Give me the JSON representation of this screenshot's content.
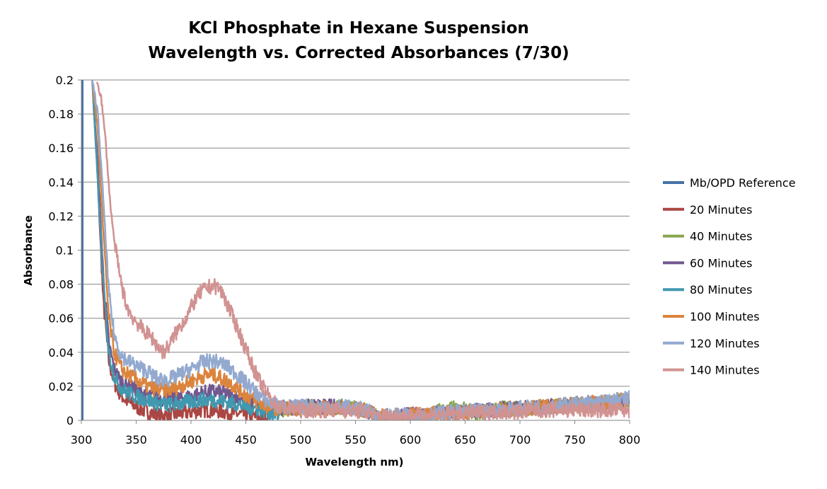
{
  "chart_data": {
    "type": "line",
    "title": [
      "KCl Phosphate in Hexane Suspension",
      "Wavelength vs. Corrected Absorbances (7/30)"
    ],
    "xlabel": "Wavelength nm)",
    "ylabel": "Absorbance",
    "xlim": [
      300,
      800
    ],
    "ylim": [
      0,
      0.2
    ],
    "xticks": [
      "300",
      "350",
      "400",
      "450",
      "500",
      "550",
      "600",
      "650",
      "700",
      "750",
      "800"
    ],
    "yticks": [
      "0",
      "0.02",
      "0.04",
      "0.06",
      "0.08",
      "0.1",
      "0.12",
      "0.14",
      "0.16",
      "0.18",
      "0.2"
    ],
    "grid": "horizontal",
    "legend_position": "right",
    "series": [
      {
        "name": "Mb/OPD Reference",
        "color": "#4572A7",
        "x": [
          300,
          300,
          301,
          301
        ],
        "y": [
          0.2,
          0,
          0,
          0.2
        ]
      },
      {
        "name": "20 Minutes",
        "color": "#AA4643",
        "x": [
          310,
          315,
          320,
          325,
          330,
          335,
          340,
          350,
          360,
          370,
          380,
          390,
          400,
          410,
          420,
          430,
          440,
          450,
          460,
          470
        ],
        "y": [
          0.2,
          0.14,
          0.07,
          0.035,
          0.022,
          0.016,
          0.012,
          0.008,
          0.005,
          0.003,
          0.003,
          0.004,
          0.005,
          0.006,
          0.006,
          0.005,
          0.004,
          0.003,
          0.002,
          0.001
        ]
      },
      {
        "name": "40 Minutes",
        "color": "#89A54E",
        "x": [
          480,
          490,
          500,
          510,
          520,
          530,
          540,
          550,
          560,
          570,
          580,
          590,
          600,
          610,
          620,
          630,
          640,
          650,
          660,
          670,
          680,
          690,
          700,
          710,
          720,
          730,
          740,
          750,
          760,
          770,
          780,
          790,
          800
        ],
        "y": [
          0.006,
          0.007,
          0.008,
          0.008,
          0.008,
          0.008,
          0.008,
          0.007,
          0.006,
          0.002,
          0,
          0,
          0,
          0.002,
          0.004,
          0.006,
          0.007,
          0.006,
          0.004,
          0.006,
          0.007,
          0.007,
          0.007,
          0.007,
          0.008,
          0.008,
          0.009,
          0.01,
          0.009,
          0.009,
          0.01,
          0.011,
          0.012
        ]
      },
      {
        "name": "60 Minutes",
        "color": "#71588F",
        "x": [
          310,
          315,
          320,
          325,
          330,
          335,
          340,
          350,
          360,
          370,
          380,
          390,
          400,
          410,
          420,
          430,
          440,
          450,
          460,
          470,
          480,
          500,
          520,
          540,
          560,
          570,
          650,
          670,
          700,
          720,
          740,
          760,
          780,
          800
        ],
        "y": [
          0.2,
          0.15,
          0.085,
          0.045,
          0.03,
          0.024,
          0.021,
          0.018,
          0.015,
          0.013,
          0.012,
          0.013,
          0.014,
          0.016,
          0.017,
          0.016,
          0.014,
          0.012,
          0.01,
          0.008,
          0.007,
          0.008,
          0.008,
          0.008,
          0.006,
          0.002,
          0.005,
          0.006,
          0.007,
          0.008,
          0.009,
          0.01,
          0.01,
          0.011
        ]
      },
      {
        "name": "80 Minutes",
        "color": "#4198AF",
        "x": [
          310,
          315,
          320,
          325,
          330,
          335,
          340,
          350,
          360,
          370,
          380,
          390,
          400,
          410,
          420,
          430,
          440,
          450,
          460,
          470,
          480
        ],
        "y": [
          0.2,
          0.14,
          0.08,
          0.04,
          0.026,
          0.02,
          0.017,
          0.014,
          0.012,
          0.01,
          0.009,
          0.01,
          0.011,
          0.012,
          0.012,
          0.011,
          0.01,
          0.008,
          0.007,
          0.005,
          0.003
        ]
      },
      {
        "name": "100 Minutes",
        "color": "#DB843D",
        "x": [
          310,
          315,
          320,
          325,
          330,
          335,
          340,
          350,
          360,
          370,
          380,
          390,
          400,
          410,
          420,
          430,
          440,
          450,
          460,
          470,
          480,
          500,
          520,
          540,
          560,
          570,
          650,
          680,
          700,
          720,
          740,
          760,
          780,
          790,
          800
        ],
        "y": [
          0.2,
          0.17,
          0.11,
          0.06,
          0.04,
          0.032,
          0.028,
          0.024,
          0.02,
          0.018,
          0.018,
          0.02,
          0.023,
          0.026,
          0.027,
          0.024,
          0.02,
          0.015,
          0.011,
          0.008,
          0.007,
          0.007,
          0.007,
          0.007,
          0.006,
          0.002,
          0.005,
          0.006,
          0.007,
          0.008,
          0.009,
          0.01,
          0.011,
          0.012,
          0.012
        ]
      },
      {
        "name": "120 Minutes",
        "color": "#93A9CF",
        "x": [
          310,
          315,
          320,
          325,
          330,
          335,
          340,
          350,
          360,
          370,
          380,
          390,
          400,
          410,
          420,
          430,
          440,
          450,
          460,
          470,
          480,
          500,
          520,
          540,
          560,
          570,
          650,
          680,
          700,
          720,
          740,
          760,
          780,
          790,
          800
        ],
        "y": [
          0.2,
          0.18,
          0.13,
          0.075,
          0.05,
          0.04,
          0.036,
          0.032,
          0.029,
          0.024,
          0.024,
          0.027,
          0.03,
          0.034,
          0.035,
          0.033,
          0.028,
          0.022,
          0.016,
          0.011,
          0.008,
          0.008,
          0.008,
          0.008,
          0.006,
          0.002,
          0.005,
          0.006,
          0.007,
          0.008,
          0.009,
          0.01,
          0.011,
          0.012,
          0.013
        ]
      },
      {
        "name": "140 Minutes",
        "color": "#D19392",
        "x": [
          314,
          318,
          322,
          326,
          330,
          335,
          340,
          345,
          350,
          355,
          360,
          365,
          370,
          375,
          380,
          385,
          390,
          395,
          400,
          405,
          410,
          415,
          420,
          425,
          430,
          435,
          440,
          445,
          450,
          455,
          460,
          465,
          470,
          475,
          480,
          490,
          500,
          520,
          540,
          560,
          570,
          650,
          680,
          700,
          720,
          740,
          760,
          780,
          800
        ],
        "y": [
          0.2,
          0.19,
          0.165,
          0.13,
          0.105,
          0.085,
          0.07,
          0.062,
          0.058,
          0.054,
          0.051,
          0.048,
          0.043,
          0.04,
          0.044,
          0.05,
          0.055,
          0.06,
          0.066,
          0.072,
          0.076,
          0.078,
          0.079,
          0.078,
          0.073,
          0.065,
          0.058,
          0.05,
          0.042,
          0.034,
          0.026,
          0.02,
          0.015,
          0.011,
          0.008,
          0.007,
          0.006,
          0.006,
          0.006,
          0.005,
          0.002,
          0.004,
          0.005,
          0.005,
          0.006,
          0.006,
          0.006,
          0.006,
          0.006
        ]
      }
    ]
  }
}
